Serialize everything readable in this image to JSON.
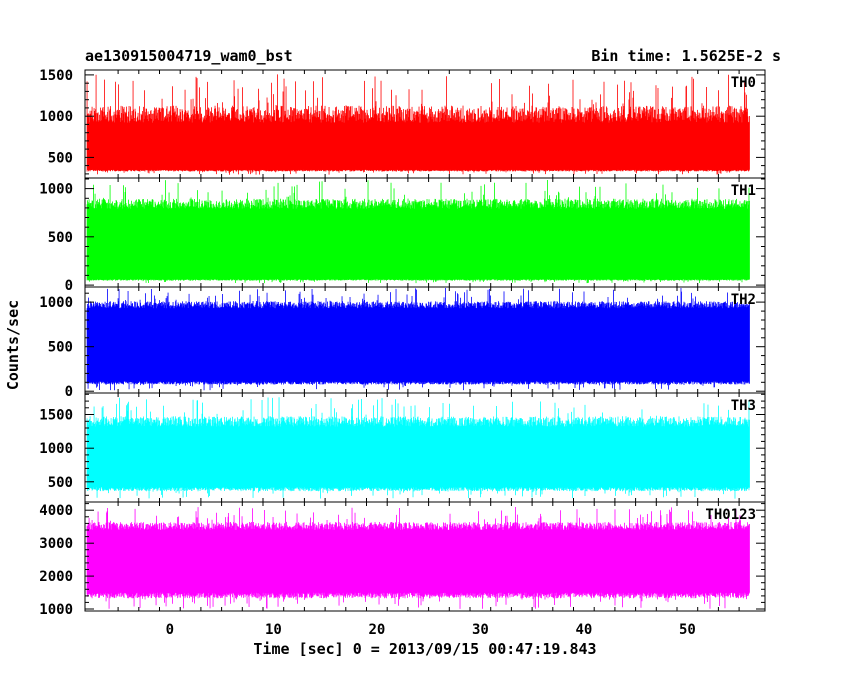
{
  "header": {
    "title": "ae130915004719_wam0_bst",
    "bin_time": "Bin time: 1.5625E-2 s"
  },
  "axes": {
    "xlabel": "Time [sec] 0 = 2013/09/15 00:47:19.843",
    "ylabel": "Counts/sec"
  },
  "chart_data": {
    "type": "line",
    "title": "ae130915004719_wam0_bst",
    "xlabel": "Time [sec] 0 = 2013/09/15 00:47:19.843",
    "ylabel": "Counts/sec",
    "xlim": [
      -8.2,
      57.5
    ],
    "x_ticks": [
      0,
      10,
      20,
      30,
      40,
      50
    ],
    "x_range_data": [
      -8.0,
      56.0
    ],
    "bin_time": 0.015625,
    "grid": false,
    "panels": [
      {
        "name": "TH0",
        "color": "#ff0000",
        "ylim": [
          250,
          1560
        ],
        "y_ticks": [
          500,
          1000,
          1500
        ],
        "band": [
          350,
          920
        ],
        "spike_max": 1510,
        "dip_min": 290
      },
      {
        "name": "TH1",
        "color": "#00ff00",
        "ylim": [
          -20,
          1110
        ],
        "y_ticks": [
          0,
          500,
          1000
        ],
        "band": [
          60,
          790
        ],
        "spike_max": 1090,
        "dip_min": 20
      },
      {
        "name": "TH2",
        "color": "#0000ff",
        "ylim": [
          -20,
          1170
        ],
        "y_ticks": [
          0,
          500,
          1000
        ],
        "band": [
          110,
          930
        ],
        "spike_max": 1160,
        "dip_min": 10
      },
      {
        "name": "TH3",
        "color": "#00ffff",
        "ylim": [
          200,
          1820
        ],
        "y_ticks": [
          500,
          1000,
          1500
        ],
        "band": [
          420,
          1320
        ],
        "spike_max": 1760,
        "dip_min": 250
      },
      {
        "name": "TH0123",
        "color": "#ff00ff",
        "ylim": [
          940,
          4250
        ],
        "y_ticks": [
          1000,
          2000,
          3000,
          4000
        ],
        "band": [
          1500,
          3400
        ],
        "spike_max": 4100,
        "dip_min": 1000
      }
    ]
  }
}
